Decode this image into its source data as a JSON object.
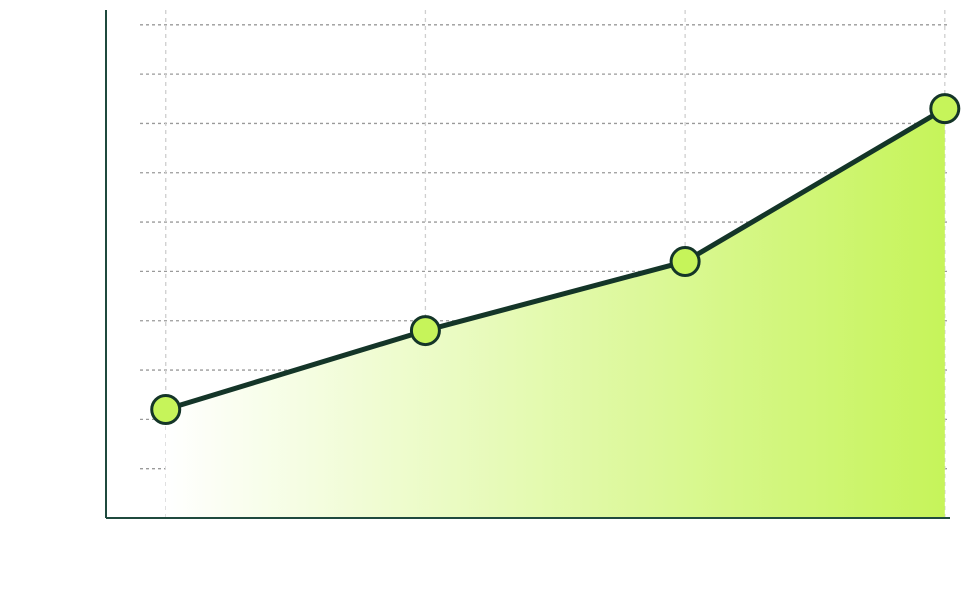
{
  "chart_data": {
    "type": "area",
    "title": "",
    "xlabel": "",
    "ylabel": "",
    "x": [
      1,
      2,
      3,
      4
    ],
    "series": [
      {
        "values": [
          2.0,
          3.6,
          5.0,
          8.1
        ]
      }
    ],
    "xlim": [
      0.77,
      4.02
    ],
    "ylim": [
      -0.2,
      10.1
    ],
    "ytick_lines": [
      -0.2,
      0.8,
      1.8,
      2.8,
      3.8,
      4.8,
      5.8,
      6.8,
      7.8,
      8.8,
      9.8
    ],
    "xtick_lines": [
      1,
      2,
      3,
      4
    ],
    "grid": true,
    "legend": "none",
    "colors": {
      "line": "#143528",
      "marker_fill": "#c6f45a",
      "marker_stroke": "#143528",
      "area_start": "#ffffff",
      "area_end": "#c6f45a",
      "axis": "#1f4a3e",
      "hgrid": "#9a9a9a",
      "vgrid": "#cfcfcf"
    }
  }
}
